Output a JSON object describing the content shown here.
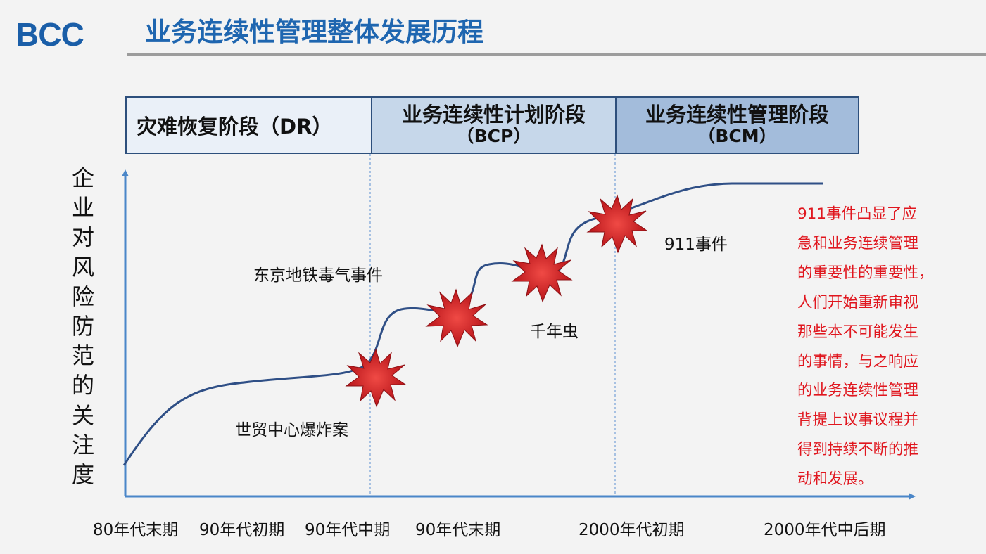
{
  "header": {
    "logo": "BCC",
    "title": "业务连续性管理整体发展历程"
  },
  "phases": [
    {
      "name": "灾难恢复阶段（DR）",
      "code": ""
    },
    {
      "name": "业务连续性计划阶段",
      "code": "（BCP）"
    },
    {
      "name": "业务连续性管理阶段",
      "code": "（BCM）"
    }
  ],
  "y_axis_label": "企业对风险防范的关注度",
  "x_axis": {
    "ticks": [
      "80年代末期",
      "90年代初期",
      "90年代中期",
      "90年代末期",
      "2000年代初期",
      "2000年代中后期"
    ]
  },
  "events": [
    {
      "label": "世贸中心爆炸案",
      "icon": "starburst-icon"
    },
    {
      "label": "东京地铁毒气事件",
      "icon": "starburst-icon"
    },
    {
      "label": "千年虫",
      "icon": "starburst-icon"
    },
    {
      "label": "911事件",
      "icon": "starburst-icon"
    }
  ],
  "note": {
    "lines": [
      "911事件凸显了应",
      "急和业务连续管理",
      "的重要性的重要性，",
      "人们开始重新审视",
      "那些本不可能发生",
      "的事情，与之响应",
      "的业务连续性管理",
      "背提上议事议程并",
      "得到持续不断的推",
      "动和发展。"
    ]
  },
  "colors": {
    "brand": "#1a5ea8",
    "title": "#1f66b0",
    "curve": "#2f4f86",
    "starburst": "#d21f24",
    "note": "#e0161e",
    "phase_dr": "#eaf0f8",
    "phase_bcp": "#c6d7ea",
    "phase_bcm": "#a3bcdb"
  }
}
